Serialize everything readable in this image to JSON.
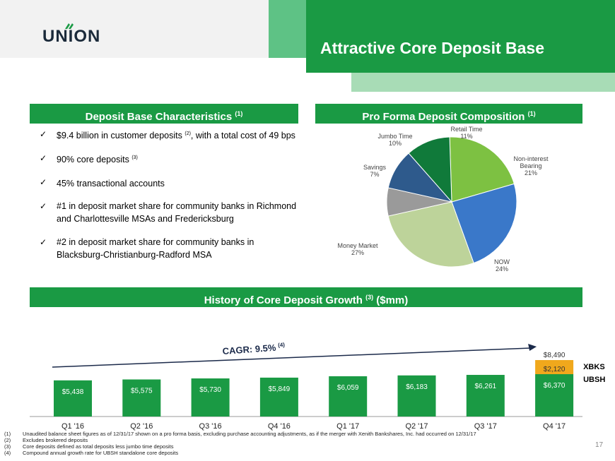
{
  "header": {
    "logo_text": "UNION",
    "title": "Attractive Core Deposit Base"
  },
  "left_section": {
    "title": "Deposit Base Characteristics",
    "title_note": "(1)",
    "bullets": [
      {
        "pre": "$9.4 billion in customer deposits ",
        "note": "(2)",
        "post": ", with a total cost of 49 bps"
      },
      {
        "pre": "90% core deposits ",
        "note": "(3)",
        "post": ""
      },
      {
        "pre": "45% transactional accounts",
        "note": "",
        "post": ""
      },
      {
        "pre": "#1 in deposit market share for community banks in Richmond and Charlottesville MSAs and Fredericksburg",
        "note": "",
        "post": ""
      },
      {
        "pre": "#2 in deposit market share for community banks in Blacksburg-Christianburg-Radford MSA",
        "note": "",
        "post": ""
      }
    ]
  },
  "right_section": {
    "title": "Pro Forma Deposit Composition",
    "title_note": "(1)"
  },
  "history_section": {
    "title": "History of Core Deposit Growth",
    "title_note": "(3)",
    "title_unit": "($mm)",
    "cagr_label": "CAGR: 9.5%",
    "cagr_note": "(4)"
  },
  "chart_data": [
    {
      "type": "pie",
      "slices": [
        {
          "label": "Non-interest Bearing",
          "pct": "21%",
          "value": 21,
          "color": "#7dc142"
        },
        {
          "label": "NOW",
          "pct": "24%",
          "value": 24,
          "color": "#3a78c9"
        },
        {
          "label": "Money Market",
          "pct": "27%",
          "value": 27,
          "color": "#bdd39a"
        },
        {
          "label": "Savings",
          "pct": "7%",
          "value": 7,
          "color": "#9a9a9a"
        },
        {
          "label": "Jumbo Time",
          "pct": "10%",
          "value": 10,
          "color": "#2e5a8c"
        },
        {
          "label": "Retail Time",
          "pct": "11%",
          "value": 11,
          "color": "#107a3a"
        }
      ]
    },
    {
      "type": "bar",
      "categories": [
        "Q1 '16",
        "Q2 '16",
        "Q3 '16",
        "Q4 '16",
        "Q1 '17",
        "Q2 '17",
        "Q3 '17",
        "Q4 '17"
      ],
      "series": [
        {
          "name": "UBSH",
          "values": [
            5438,
            5575,
            5730,
            5849,
            6059,
            6183,
            6261,
            6370
          ],
          "labels": [
            "$5,438",
            "$5,575",
            "$5,730",
            "$5,849",
            "$6,059",
            "$6,183",
            "$6,261",
            "$6,370"
          ],
          "color": "#1a9a44"
        },
        {
          "name": "XBKS",
          "values": [
            0,
            0,
            0,
            0,
            0,
            0,
            0,
            2120
          ],
          "labels": [
            "",
            "",
            "",
            "",
            "",
            "",
            "",
            "$2,120"
          ],
          "color": "#f0a81c"
        }
      ],
      "total_label": "$8,490",
      "total_value": 8490
    }
  ],
  "footnotes": [
    {
      "n": "(1)",
      "text": "Unaudited balance sheet figures as of 12/31/17 shown on a pro forma basis, excluding purchase accounting adjustments, as if the merger with Xenith Bankshares, Inc. had occurred on 12/31/17"
    },
    {
      "n": "(2)",
      "text": "Excludes brokered deposits"
    },
    {
      "n": "(3)",
      "text": "Core deposits defined as total deposits less jumbo time deposits"
    },
    {
      "n": "(4)",
      "text": "Compound annual growth rate for UBSH standalone core deposits"
    }
  ],
  "page_number": "17"
}
